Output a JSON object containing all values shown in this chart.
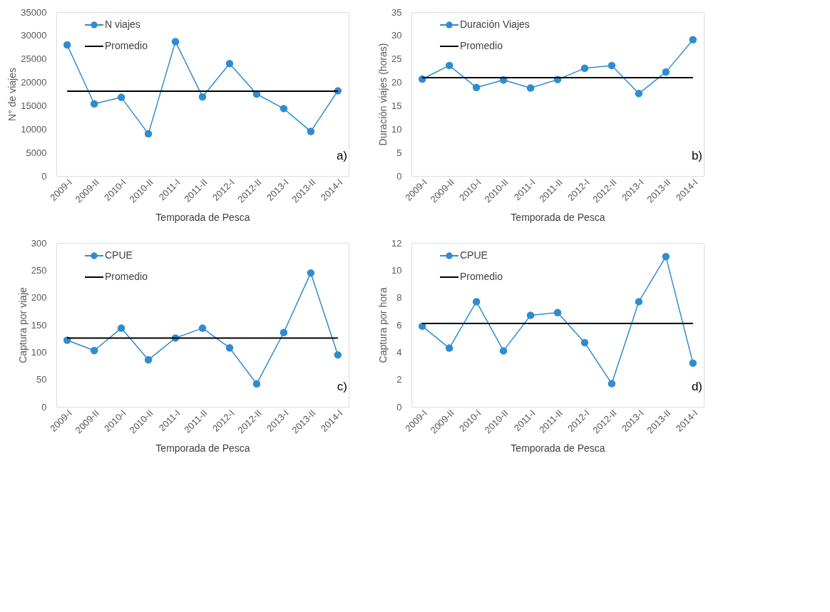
{
  "chart_data": [
    {
      "type": "line",
      "xlabel": "Temporada de Pesca",
      "ylabel": "N° de viajes",
      "annotations": [
        "a)"
      ],
      "categories": [
        "2009-I",
        "2009-II",
        "2010-I",
        "2010-II",
        "2011-I",
        "2011-II",
        "2012-I",
        "2012-II",
        "2013-I",
        "2013-II",
        "2014-I"
      ],
      "ylim": [
        0,
        35000
      ],
      "yticks": [
        0,
        5000,
        10000,
        15000,
        20000,
        25000,
        30000,
        35000
      ],
      "grid": false,
      "legend": "top left",
      "series": [
        {
          "name": "N viajes",
          "color": "#2f8ccf",
          "marker": "circle",
          "values": [
            28000,
            15400,
            16800,
            9000,
            28700,
            16900,
            24000,
            17500,
            14400,
            9500,
            18200
          ]
        },
        {
          "name": "Promedio",
          "color": "#000000",
          "marker": "none",
          "values": [
            18100,
            18100,
            18100,
            18100,
            18100,
            18100,
            18100,
            18100,
            18100,
            18100,
            18100
          ]
        }
      ]
    },
    {
      "type": "line",
      "xlabel": "Temporada de Pesca",
      "ylabel": "Duración viajes (horas)",
      "annotations": [
        "b)"
      ],
      "categories": [
        "2009-I",
        "2009-II",
        "2010-I",
        "2010-II",
        "2011-I",
        "2011-II",
        "2012-I",
        "2012-II",
        "2013-I",
        "2013-II",
        "2014-I"
      ],
      "ylim": [
        0,
        35
      ],
      "yticks": [
        0,
        5,
        10,
        15,
        20,
        25,
        30,
        35
      ],
      "grid": false,
      "legend": "top left",
      "series": [
        {
          "name": "Duración Viajes",
          "color": "#2f8ccf",
          "marker": "circle",
          "values": [
            20.7,
            23.6,
            18.9,
            20.5,
            18.8,
            20.6,
            23.0,
            23.6,
            17.6,
            22.2,
            29.1
          ]
        },
        {
          "name": "Promedio",
          "color": "#000000",
          "marker": "none",
          "values": [
            21.0,
            21.0,
            21.0,
            21.0,
            21.0,
            21.0,
            21.0,
            21.0,
            21.0,
            21.0,
            21.0
          ]
        }
      ]
    },
    {
      "type": "line",
      "xlabel": "Temporada de Pesca",
      "ylabel": "Captura por viaje",
      "annotations": [
        "c)"
      ],
      "categories": [
        "2009-I",
        "2009-II",
        "2010-I",
        "2010-II",
        "2011-I",
        "2011-II",
        "2012-I",
        "2012-II",
        "2013-I",
        "2013-II",
        "2014-I"
      ],
      "ylim": [
        0,
        300
      ],
      "yticks": [
        0,
        50,
        100,
        150,
        200,
        250,
        300
      ],
      "grid": false,
      "legend": "top left",
      "series": [
        {
          "name": "CPUE",
          "color": "#2f8ccf",
          "marker": "circle",
          "values": [
            122,
            103,
            144,
            86,
            126,
            144,
            108,
            42,
            136,
            245,
            95
          ]
        },
        {
          "name": "Promedio",
          "color": "#000000",
          "marker": "none",
          "values": [
            126,
            126,
            126,
            126,
            126,
            126,
            126,
            126,
            126,
            126,
            126
          ]
        }
      ]
    },
    {
      "type": "line",
      "xlabel": "Temporada de Pesca",
      "ylabel": "Captura por hora",
      "annotations": [
        "d)"
      ],
      "categories": [
        "2009-I",
        "2009-II",
        "2010-I",
        "2010-II",
        "2011-I",
        "2011-II",
        "2012-I",
        "2012-II",
        "2013-I",
        "2013-II",
        "2014-I"
      ],
      "ylim": [
        0,
        12
      ],
      "yticks": [
        0,
        2,
        4,
        6,
        8,
        10,
        12
      ],
      "grid": false,
      "legend": "top left",
      "series": [
        {
          "name": "CPUE",
          "color": "#2f8ccf",
          "marker": "circle",
          "values": [
            5.9,
            4.3,
            7.7,
            4.1,
            6.7,
            6.9,
            4.7,
            1.7,
            7.7,
            11.0,
            3.2
          ]
        },
        {
          "name": "Promedio",
          "color": "#000000",
          "marker": "none",
          "values": [
            6.1,
            6.1,
            6.1,
            6.1,
            6.1,
            6.1,
            6.1,
            6.1,
            6.1,
            6.1,
            6.1
          ]
        }
      ]
    }
  ]
}
